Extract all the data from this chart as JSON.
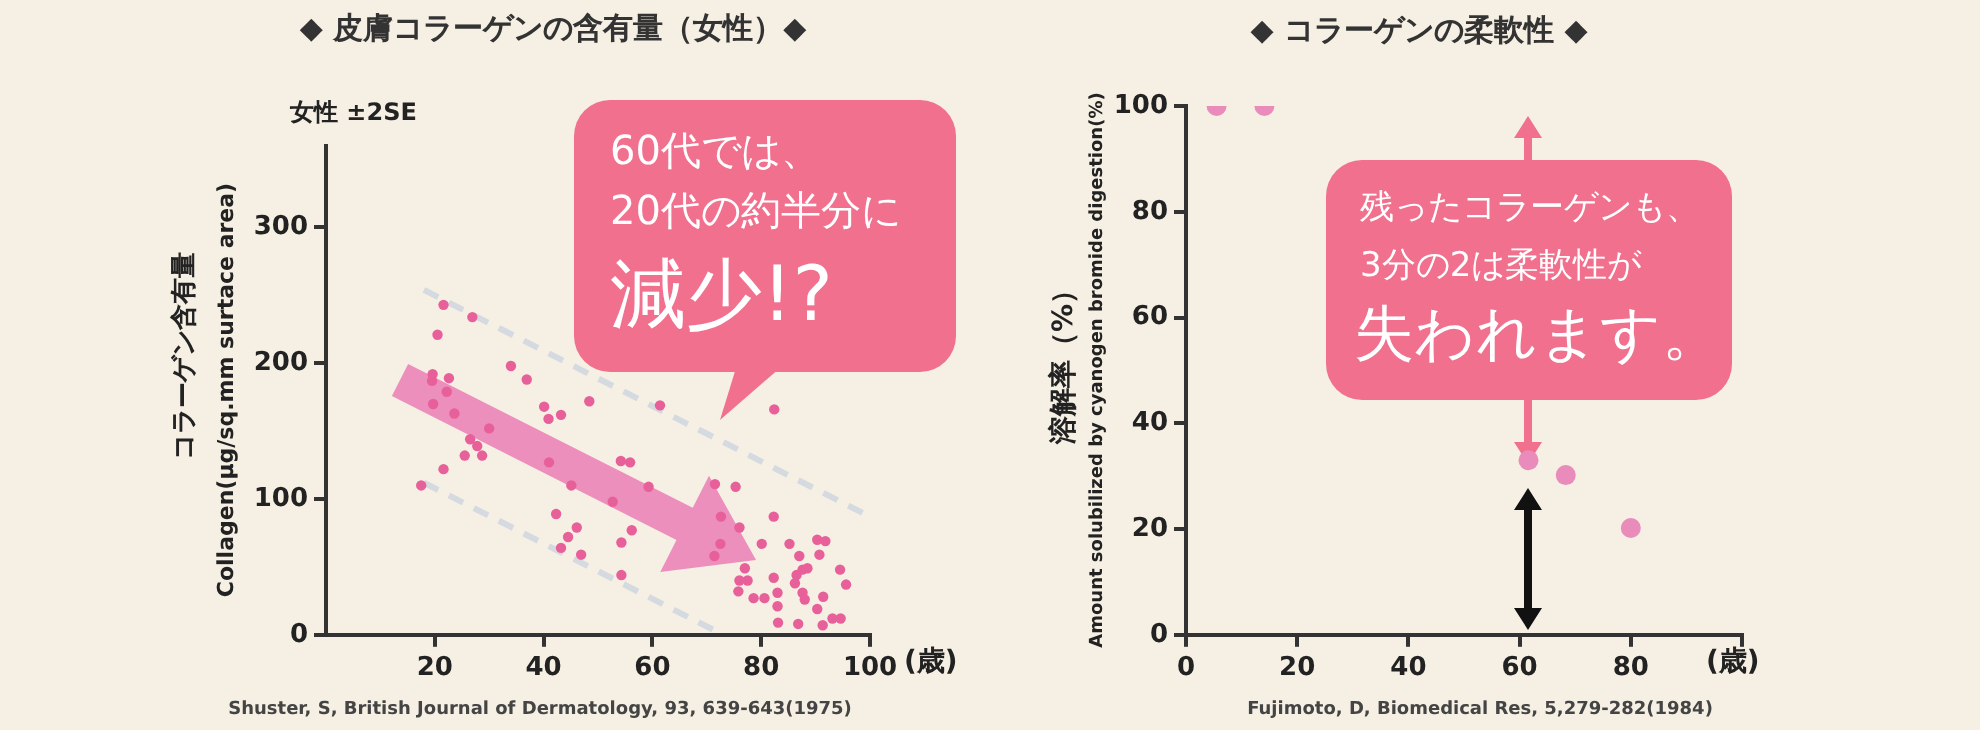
{
  "chart_data": [
    {
      "type": "scatter",
      "title": "◆ 皮膚コラーゲンの含有量（女性）◆",
      "xlabel": "(歳)",
      "ylabel": "コラーゲン含有量\nCollagen(μg/sq.mm surtace area)",
      "xlim": [
        0,
        100
      ],
      "xticks": [
        20,
        40,
        60,
        80,
        100
      ],
      "ylim": [
        0,
        360
      ],
      "yticks": [
        0,
        100,
        200,
        300
      ],
      "grid": false,
      "legend": false,
      "annotations": [
        "女性  ±2SE",
        "60代では、",
        "20代の約半分に",
        "減少!?",
        "Shuster, S, British Journal of Dermatology, 93, 639-643(1975)"
      ],
      "series": [
        {
          "color": "#e8609a",
          "marker": "circle",
          "x": [
            21.6,
            26.9,
            20.5,
            19.6,
            19.5,
            22.6,
            22.2,
            19.7,
            23.6,
            30.0,
            34.0,
            36.9,
            26.5,
            27.8,
            25.5,
            28.7,
            21.6,
            17.5,
            40.1,
            40.9,
            43.2,
            48.4,
            61.4,
            41.0,
            54.2,
            55.9,
            45.1,
            59.3,
            52.7,
            42.3,
            46.1,
            56.2,
            44.5,
            43.2,
            46.9,
            54.3,
            54.3,
            71.5,
            75.3,
            72.6,
            76.0,
            72.5,
            71.4,
            82.4,
            82.3,
            80.1,
            85.2,
            77.0,
            76.0,
            77.5,
            75.8,
            78.6,
            80.6,
            82.3,
            83.0,
            83.0,
            83.1,
            87.0,
            86.5,
            87.6,
            88.5,
            86.2,
            87.6,
            88.0,
            86.8,
            90.3,
            91.8,
            90.7,
            91.4,
            90.3,
            91.3,
            93.1,
            94.6,
            94.5,
            95.6
          ],
          "values": [
            243,
            234,
            221,
            192,
            187,
            189,
            179,
            170,
            163,
            152,
            198,
            188,
            144,
            139,
            132,
            132,
            122,
            110,
            168,
            159,
            162,
            172,
            169,
            127,
            128,
            127,
            110,
            109,
            98,
            89,
            79,
            77,
            72,
            64,
            59,
            68,
            44,
            111,
            109,
            87,
            79,
            67,
            58,
            166,
            87,
            67,
            67,
            49,
            40,
            40,
            32,
            27,
            27,
            42,
            31,
            21,
            9,
            58,
            44,
            48,
            49,
            38,
            31,
            26,
            8,
            70,
            69,
            59,
            28,
            19,
            7,
            12,
            12,
            48,
            37
          ]
        },
        {
          "type": "line",
          "color": "#d5d9e0",
          "marker": "none",
          "line_style": "dashed",
          "x": [
            18,
            100
          ],
          "values": [
            254,
            87
          ]
        },
        {
          "type": "line",
          "color": "#d5d9e0",
          "marker": "none",
          "line_style": "dashed",
          "x": [
            18,
            73
          ],
          "values": [
            112,
            0
          ]
        }
      ]
    },
    {
      "type": "scatter",
      "title": "◆ コラーゲンの柔軟性 ◆",
      "xlabel": "(歳)",
      "ylabel": "溶解率（%）\nAmount solubilized by cyanogen bromide digestion(%)",
      "xlim": [
        0,
        100
      ],
      "xticks": [
        0,
        20,
        40,
        60,
        80,
        {
          "value": 100,
          "label": null
        }
      ],
      "ylim": [
        0,
        100
      ],
      "yticks": [
        0,
        20,
        40,
        60,
        80,
        100
      ],
      "grid": false,
      "legend": false,
      "annotations": [
        "残ったコラーゲンも、",
        "3分の2は柔軟性が",
        "失われます。",
        "Fujimoto, D, Biomedical Res, 5,279-282(1984)"
      ],
      "series": [
        {
          "color": "#e98bbb",
          "marker": "circle",
          "x": [
            5.5,
            14.1,
            61.6,
            68.3,
            80.0
          ],
          "values": [
            100,
            100,
            33,
            30.2,
            20.2
          ]
        }
      ]
    }
  ]
}
